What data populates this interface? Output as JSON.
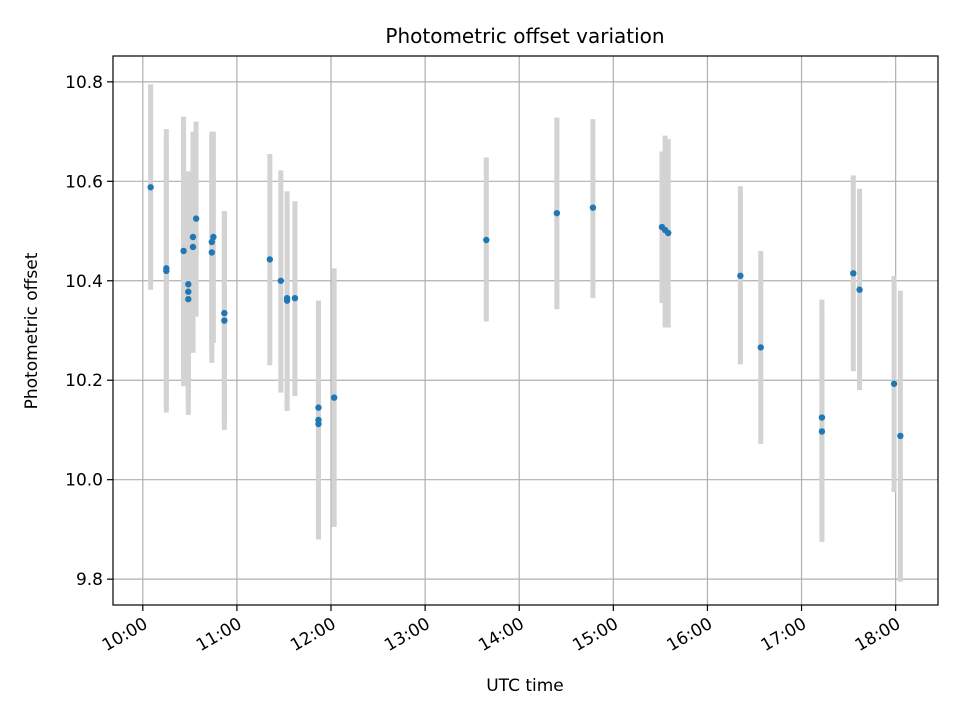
{
  "chart_data": {
    "type": "scatter",
    "title": "Photometric offset variation",
    "xlabel": "UTC time",
    "ylabel": "Photometric offset",
    "x_ticks": [
      "10:00",
      "11:00",
      "12:00",
      "13:00",
      "14:00",
      "15:00",
      "16:00",
      "17:00",
      "18:00"
    ],
    "y_ticks": [
      "9.8",
      "10.0",
      "10.2",
      "10.4",
      "10.6",
      "10.8"
    ],
    "xlim": [
      "09:41",
      "18:27"
    ],
    "ylim": [
      9.748,
      10.852
    ],
    "grid": true,
    "colors": {
      "point": "#1f77b4",
      "errorbar": "#d3d3d3",
      "grid": "#b0b0b0"
    },
    "points": [
      {
        "x": "10:05",
        "y": 10.588,
        "lo": 10.382,
        "hi": 10.795
      },
      {
        "x": "10:15",
        "y": 10.42,
        "lo": 10.135,
        "hi": 10.705
      },
      {
        "x": "10:15",
        "y": 10.425,
        "lo": 10.15,
        "hi": 10.68
      },
      {
        "x": "10:26",
        "y": 10.46,
        "lo": 10.188,
        "hi": 10.73
      },
      {
        "x": "10:29",
        "y": 10.393,
        "lo": 10.13,
        "hi": 10.62
      },
      {
        "x": "10:29",
        "y": 10.378,
        "lo": 10.165,
        "hi": 10.62
      },
      {
        "x": "10:29",
        "y": 10.363,
        "lo": 10.148,
        "hi": 10.56
      },
      {
        "x": "10:32",
        "y": 10.468,
        "lo": 10.255,
        "hi": 10.7
      },
      {
        "x": "10:32",
        "y": 10.488,
        "lo": 10.275,
        "hi": 10.68
      },
      {
        "x": "10:34",
        "y": 10.525,
        "lo": 10.328,
        "hi": 10.72
      },
      {
        "x": "10:44",
        "y": 10.457,
        "lo": 10.235,
        "hi": 10.695
      },
      {
        "x": "10:44",
        "y": 10.478,
        "lo": 10.255,
        "hi": 10.7
      },
      {
        "x": "10:45",
        "y": 10.488,
        "lo": 10.275,
        "hi": 10.7
      },
      {
        "x": "10:52",
        "y": 10.335,
        "lo": 10.12,
        "hi": 10.54
      },
      {
        "x": "10:52",
        "y": 10.32,
        "lo": 10.1,
        "hi": 10.54
      },
      {
        "x": "11:21",
        "y": 10.443,
        "lo": 10.23,
        "hi": 10.655
      },
      {
        "x": "11:28",
        "y": 10.4,
        "lo": 10.175,
        "hi": 10.622
      },
      {
        "x": "11:32",
        "y": 10.365,
        "lo": 10.138,
        "hi": 10.58
      },
      {
        "x": "11:32",
        "y": 10.36,
        "lo": 10.138,
        "hi": 10.56
      },
      {
        "x": "11:37",
        "y": 10.365,
        "lo": 10.168,
        "hi": 10.56
      },
      {
        "x": "11:52",
        "y": 10.145,
        "lo": 9.88,
        "hi": 10.36
      },
      {
        "x": "11:52",
        "y": 10.12,
        "lo": 9.88,
        "hi": 10.36
      },
      {
        "x": "11:52",
        "y": 10.112,
        "lo": 9.88,
        "hi": 10.34
      },
      {
        "x": "12:02",
        "y": 10.165,
        "lo": 9.905,
        "hi": 10.425
      },
      {
        "x": "13:39",
        "y": 10.482,
        "lo": 10.318,
        "hi": 10.648
      },
      {
        "x": "14:24",
        "y": 10.536,
        "lo": 10.343,
        "hi": 10.728
      },
      {
        "x": "14:47",
        "y": 10.547,
        "lo": 10.365,
        "hi": 10.725
      },
      {
        "x": "15:31",
        "y": 10.508,
        "lo": 10.355,
        "hi": 10.66
      },
      {
        "x": "15:33",
        "y": 10.502,
        "lo": 10.306,
        "hi": 10.692
      },
      {
        "x": "15:35",
        "y": 10.496,
        "lo": 10.306,
        "hi": 10.685
      },
      {
        "x": "16:21",
        "y": 10.41,
        "lo": 10.232,
        "hi": 10.59
      },
      {
        "x": "16:34",
        "y": 10.266,
        "lo": 10.072,
        "hi": 10.46
      },
      {
        "x": "17:13",
        "y": 10.125,
        "lo": 9.89,
        "hi": 10.362
      },
      {
        "x": "17:13",
        "y": 10.097,
        "lo": 9.875,
        "hi": 10.34
      },
      {
        "x": "17:33",
        "y": 10.415,
        "lo": 10.218,
        "hi": 10.612
      },
      {
        "x": "17:37",
        "y": 10.382,
        "lo": 10.18,
        "hi": 10.585
      },
      {
        "x": "17:59",
        "y": 10.193,
        "lo": 9.975,
        "hi": 10.41
      },
      {
        "x": "18:03",
        "y": 10.088,
        "lo": 9.795,
        "hi": 10.38
      }
    ]
  }
}
